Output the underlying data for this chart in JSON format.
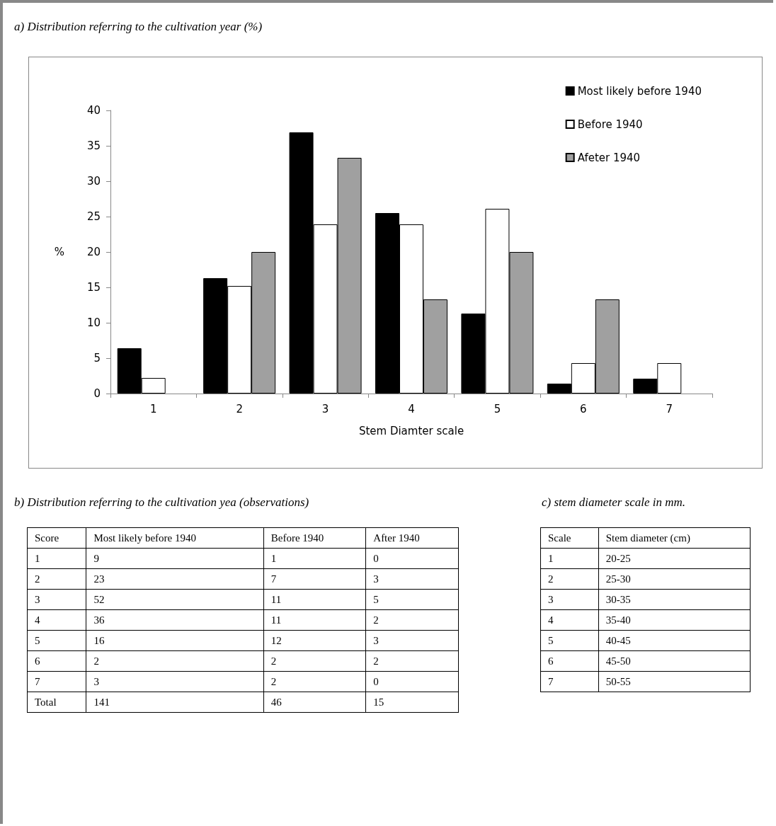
{
  "chart_data": [
    {
      "type": "bar",
      "title": "a) Distribution referring to the cultivation year (%)",
      "xlabel": "Stem Diamter scale",
      "ylabel": "%",
      "categories": [
        "1",
        "2",
        "3",
        "4",
        "5",
        "6",
        "7"
      ],
      "series": [
        {
          "name": "Most likely before 1940",
          "color": "#000000",
          "values": [
            6.4,
            16.3,
            36.9,
            25.5,
            11.3,
            1.4,
            2.1
          ]
        },
        {
          "name": "Before 1940",
          "color": "#ffffff",
          "values": [
            2.2,
            15.2,
            23.9,
            23.9,
            26.1,
            4.3,
            4.3
          ]
        },
        {
          "name": "Afeter 1940",
          "color": "#a0a0a0",
          "values": [
            0,
            20,
            33.3,
            13.3,
            20,
            13.3,
            0
          ]
        }
      ],
      "ylim": [
        0,
        40
      ],
      "yticks": [
        0,
        5,
        10,
        15,
        20,
        25,
        30,
        35,
        40
      ],
      "grid": false,
      "legend": "top right"
    },
    {
      "type": "heatmap",
      "title": "b) Distribution referring to the cultivation yea (observations)",
      "ylabel": "Score",
      "categories": [
        "Most likely before 1940",
        "Before 1940",
        "After 1940"
      ],
      "y_categories": [
        "1",
        "2",
        "3",
        "4",
        "5",
        "6",
        "7",
        "Total"
      ],
      "data_labels": true,
      "cells": [
        [
          9,
          1,
          0
        ],
        [
          23,
          7,
          3
        ],
        [
          52,
          11,
          5
        ],
        [
          36,
          11,
          2
        ],
        [
          16,
          12,
          3
        ],
        [
          2,
          2,
          2
        ],
        [
          3,
          2,
          0
        ],
        [
          141,
          46,
          15
        ]
      ]
    },
    {
      "type": "heatmap",
      "title": "c) stem diameter scale in mm.",
      "ylabel": "Scale",
      "categories": [
        "Stem diameter (cm)"
      ],
      "y_categories": [
        "1",
        "2",
        "3",
        "4",
        "5",
        "6",
        "7"
      ],
      "cells": [
        [
          null
        ],
        [
          null
        ],
        [
          null
        ],
        [
          null
        ],
        [
          null
        ],
        [
          null
        ],
        [
          null
        ]
      ],
      "cell_labels": [
        [
          "20-25"
        ],
        [
          "25-30"
        ],
        [
          "30-35"
        ],
        [
          "35-40"
        ],
        [
          "40-45"
        ],
        [
          "45-50"
        ],
        [
          "50-55"
        ]
      ]
    }
  ]
}
